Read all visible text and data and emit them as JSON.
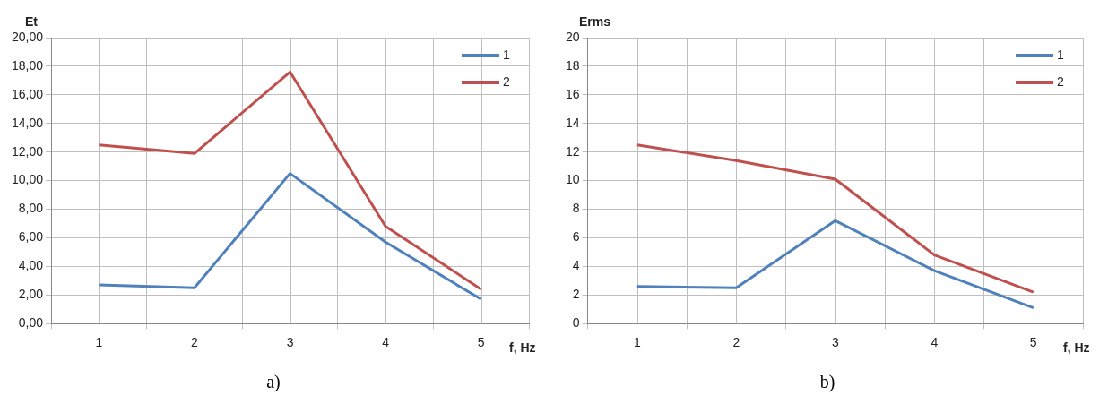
{
  "chart_data": [
    {
      "type": "line",
      "xlabel": "f, Hz",
      "ylabel": "Et",
      "categories": [
        "1",
        "2",
        "3",
        "4",
        "5"
      ],
      "series": [
        {
          "name": "1",
          "color": "#4f81bd",
          "values": [
            2.7,
            2.5,
            10.5,
            5.7,
            1.7
          ]
        },
        {
          "name": "2",
          "color": "#c0504d",
          "values": [
            12.5,
            11.9,
            17.6,
            6.8,
            2.4
          ]
        }
      ],
      "ylim": [
        0,
        20
      ],
      "yticks": [
        {
          "value": 0,
          "label": "0,00"
        },
        {
          "value": 2,
          "label": "2,00"
        },
        {
          "value": 4,
          "label": "4,00"
        },
        {
          "value": 6,
          "label": "6,00"
        },
        {
          "value": 8,
          "label": "8,00"
        },
        {
          "value": 10,
          "label": "10,00"
        },
        {
          "value": 12,
          "label": "12,00"
        },
        {
          "value": 14,
          "label": "14,00"
        },
        {
          "value": 16,
          "label": "16,00"
        },
        {
          "value": 18,
          "label": "18,00"
        },
        {
          "value": 20,
          "label": "20,00"
        }
      ],
      "grid": true,
      "legend": "top right",
      "marker": "none",
      "line_style": "solid",
      "annotations": [
        "a)"
      ]
    },
    {
      "type": "line",
      "xlabel": "f, Hz",
      "ylabel": "Erms",
      "categories": [
        "1",
        "2",
        "3",
        "4",
        "5"
      ],
      "series": [
        {
          "name": "1",
          "color": "#4f81bd",
          "values": [
            2.6,
            2.5,
            7.2,
            3.7,
            1.1
          ]
        },
        {
          "name": "2",
          "color": "#c0504d",
          "values": [
            12.5,
            11.4,
            10.1,
            4.8,
            2.2
          ]
        }
      ],
      "ylim": [
        0,
        20
      ],
      "yticks": [
        0,
        2,
        4,
        6,
        8,
        10,
        12,
        14,
        16,
        18,
        20
      ],
      "grid": true,
      "legend": "top right",
      "marker": "none",
      "line_style": "solid",
      "annotations": [
        "b)"
      ]
    }
  ]
}
